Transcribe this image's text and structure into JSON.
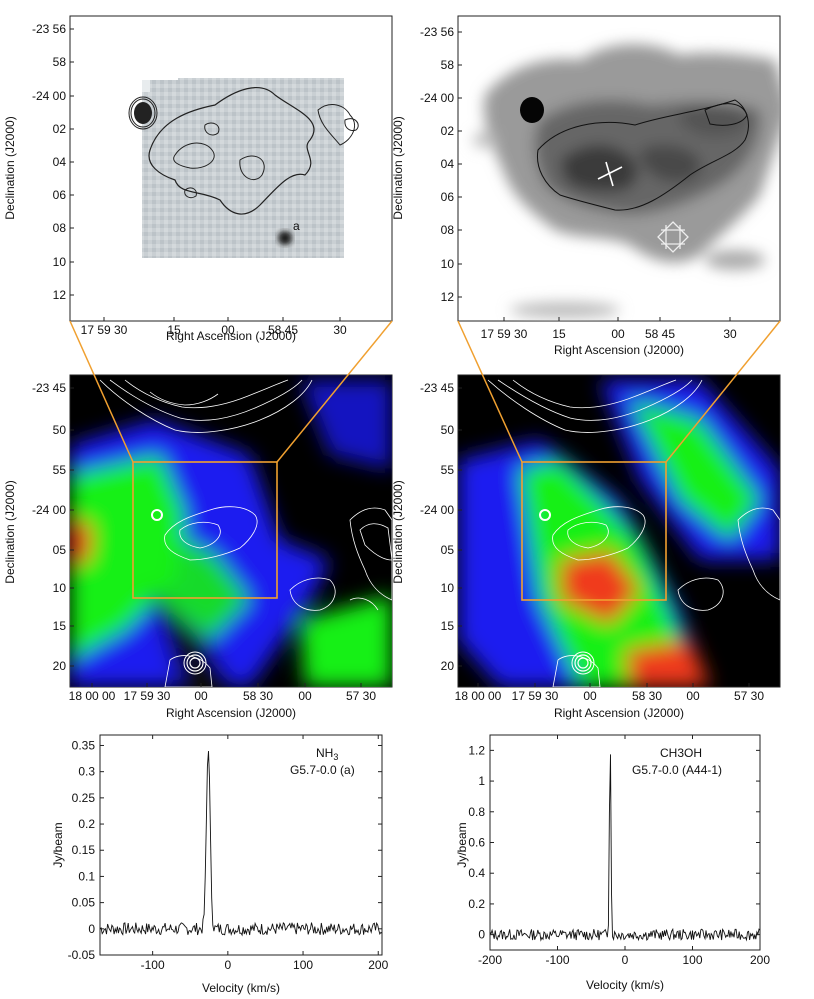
{
  "panels": {
    "tl": {
      "xlabel": "Right Ascension (J2000)",
      "ylabel": "Declination (J2000)",
      "xticks": [
        "17 59 30",
        "15",
        "00",
        "58 45",
        "30"
      ],
      "yticks": [
        "-23 56",
        "58",
        "-24 00",
        "02",
        "04",
        "06",
        "08",
        "10",
        "12"
      ],
      "source_label": "a"
    },
    "tr": {
      "xlabel": "Right Ascension (J2000)",
      "ylabel": "Declination (J2000)",
      "xticks": [
        "17 59 30",
        "15",
        "00",
        "58 45",
        "30"
      ],
      "yticks": [
        "-23 56",
        "58",
        "-24 00",
        "02",
        "04",
        "06",
        "08",
        "10",
        "12"
      ]
    },
    "ml": {
      "xlabel": "Right Ascension (J2000)",
      "ylabel": "Declination (J2000)",
      "xticks": [
        "18 00 00",
        "17 59 30",
        "00",
        "58 30",
        "00",
        "57 30"
      ],
      "yticks": [
        "-23 45",
        "50",
        "55",
        "-24 00",
        "05",
        "10",
        "15",
        "20"
      ]
    },
    "mr": {
      "xlabel": "Right Ascension (J2000)",
      "ylabel": "Declination (J2000)",
      "xticks": [
        "18 00 00",
        "17 59 30",
        "00",
        "58 30",
        "00",
        "57 30"
      ],
      "yticks": [
        "-23 45",
        "50",
        "55",
        "-24 00",
        "05",
        "10",
        "15",
        "20"
      ]
    }
  },
  "chart_data": [
    {
      "type": "line",
      "molecule": "NH3",
      "source": "G5.7-0.0 (a)",
      "xlabel": "Velocity (km/s)",
      "ylabel": "Jy/beam",
      "xlim": [
        -170,
        205
      ],
      "ylim": [
        -0.05,
        0.37
      ],
      "xticks": [
        -100,
        0,
        100,
        200
      ],
      "yticks": [
        -0.05,
        0,
        0.05,
        0.1,
        0.15,
        0.2,
        0.25,
        0.3,
        0.35
      ],
      "peak": {
        "x": -26,
        "y": 0.35
      },
      "noise_rms": 0.01
    },
    {
      "type": "line",
      "molecule": "CH3OH",
      "source": "G5.7-0.0 (A44-1)",
      "xlabel": "Velocity (km/s)",
      "ylabel": "Jy/beam",
      "xlim": [
        -200,
        200
      ],
      "ylim": [
        -0.1,
        1.3
      ],
      "xticks": [
        -200,
        -100,
        0,
        100,
        200
      ],
      "yticks": [
        0,
        0.2,
        0.4,
        0.6,
        0.8,
        1,
        1.2
      ],
      "peak": {
        "x": -22,
        "y": 1.3
      },
      "noise_rms": 0.03
    }
  ],
  "colors": {
    "zoom_line": "#f0a030",
    "green": "#16f016",
    "blue": "#1a1af0",
    "red": "#f03a1a"
  }
}
